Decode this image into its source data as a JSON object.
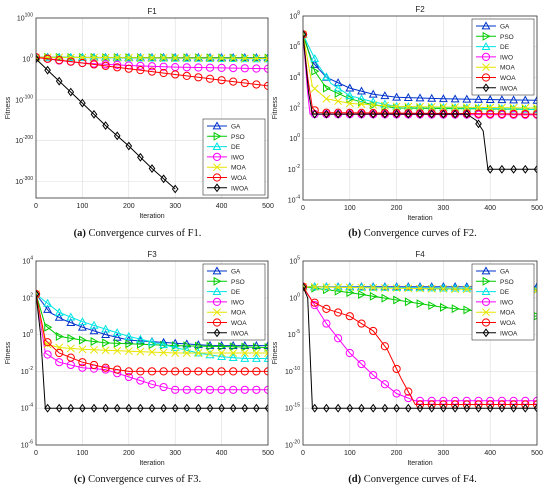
{
  "chart_data": [
    {
      "type": "line",
      "title": "F1",
      "xlabel": "Iteration",
      "ylabel": "Fitness",
      "yscale": "log",
      "xlim": [
        0,
        500
      ],
      "ylim": [
        -340,
        100
      ],
      "xticks": [
        "0",
        "100",
        "200",
        "300",
        "400",
        "500"
      ],
      "yticks": [
        {
          "base": "10",
          "exp": "100",
          "v": 100
        },
        {
          "base": "10",
          "exp": "0",
          "v": 0
        },
        {
          "base": "10",
          "exp": "-100",
          "v": -100
        },
        {
          "base": "10",
          "exp": "-200",
          "v": -200
        },
        {
          "base": "10",
          "exp": "-300",
          "v": -300
        }
      ],
      "legend_position": "bottom-right",
      "caption": {
        "label": "(a)",
        "text": " Convergence curves of F1."
      },
      "series": [
        {
          "name": "GA",
          "color": "#0033cc",
          "marker": "triangle",
          "x": [
            0,
            500
          ],
          "y": [
            4,
            3
          ]
        },
        {
          "name": "PSO",
          "color": "#00cc00",
          "marker": "tri-right",
          "x": [
            0,
            500
          ],
          "y": [
            4,
            2
          ]
        },
        {
          "name": "DE",
          "color": "#00e5e5",
          "marker": "triangle",
          "x": [
            0,
            500
          ],
          "y": [
            4,
            0
          ]
        },
        {
          "name": "IWO",
          "color": "#ff00ff",
          "marker": "circle",
          "x": [
            0,
            50,
            100,
            200,
            300,
            400,
            500
          ],
          "y": [
            4,
            -4,
            -10,
            -16,
            -20,
            -22,
            -24
          ]
        },
        {
          "name": "MOA",
          "color": "#e6e600",
          "marker": "x",
          "x": [
            0,
            500
          ],
          "y": [
            4,
            1
          ]
        },
        {
          "name": "WOA",
          "color": "#ff0000",
          "marker": "circle",
          "x": [
            0,
            50,
            100,
            150,
            200,
            250,
            300,
            350,
            400,
            450,
            500
          ],
          "y": [
            4,
            -3,
            -10,
            -17,
            -24,
            -31,
            -38,
            -45,
            -52,
            -59,
            -66
          ]
        },
        {
          "name": "IWOA",
          "color": "#000000",
          "marker": "diamond",
          "x": [
            0,
            30,
            60,
            100,
            150,
            200,
            250,
            300
          ],
          "y": [
            0,
            -33,
            -65,
            -108,
            -163,
            -213,
            -268,
            -318
          ]
        }
      ]
    },
    {
      "type": "line",
      "title": "F2",
      "xlabel": "Iteration",
      "ylabel": "Fitness",
      "yscale": "log",
      "xlim": [
        0,
        500
      ],
      "ylim": [
        -4,
        8
      ],
      "xticks": [
        "0",
        "100",
        "200",
        "300",
        "400",
        "500"
      ],
      "yticks": [
        {
          "base": "10",
          "exp": "8",
          "v": 8
        },
        {
          "base": "10",
          "exp": "6",
          "v": 6
        },
        {
          "base": "10",
          "exp": "4",
          "v": 4
        },
        {
          "base": "10",
          "exp": "2",
          "v": 2
        },
        {
          "base": "10",
          "exp": "0",
          "v": 0
        },
        {
          "base": "10",
          "exp": "-2",
          "v": -2
        },
        {
          "base": "10",
          "exp": "-4",
          "v": -4
        }
      ],
      "legend_position": "top-right",
      "caption": {
        "label": "(b)",
        "text": " Convergence curves of F2."
      },
      "series": [
        {
          "name": "GA",
          "color": "#0033cc",
          "marker": "triangle",
          "x": [
            0,
            20,
            50,
            100,
            150,
            200,
            300,
            500
          ],
          "y": [
            6.8,
            5.0,
            4.0,
            3.3,
            2.9,
            2.7,
            2.6,
            2.5
          ]
        },
        {
          "name": "PSO",
          "color": "#00cc00",
          "marker": "tri-right",
          "x": [
            0,
            25,
            50,
            100,
            150,
            200,
            500
          ],
          "y": [
            6.8,
            4.4,
            3.3,
            2.6,
            2.2,
            2.0,
            1.9
          ]
        },
        {
          "name": "DE",
          "color": "#00e5e5",
          "marker": "triangle",
          "x": [
            0,
            30,
            60,
            100,
            150,
            200,
            500
          ],
          "y": [
            6.8,
            4.9,
            3.6,
            2.8,
            2.4,
            2.1,
            1.9
          ]
        },
        {
          "name": "IWO",
          "color": "#ff00ff",
          "marker": "circle",
          "x": [
            0,
            10,
            15,
            500
          ],
          "y": [
            6.8,
            3.0,
            1.6,
            1.55
          ]
        },
        {
          "name": "MOA",
          "color": "#e6e600",
          "marker": "x",
          "x": [
            0,
            20,
            50,
            100,
            200,
            500
          ],
          "y": [
            6.8,
            3.4,
            2.6,
            2.3,
            2.1,
            2.0
          ]
        },
        {
          "name": "WOA",
          "color": "#ff0000",
          "marker": "circle",
          "x": [
            0,
            10,
            20,
            30,
            500
          ],
          "y": [
            6.8,
            4.0,
            2.0,
            1.7,
            1.6
          ]
        },
        {
          "name": "IWOA",
          "color": "#000000",
          "marker": "diamond",
          "x": [
            0,
            12,
            20,
            350,
            370,
            385,
            395,
            500
          ],
          "y": [
            6.8,
            3.0,
            1.6,
            1.6,
            1.2,
            0.5,
            -2.0,
            -2.0
          ]
        }
      ]
    },
    {
      "type": "line",
      "title": "F3",
      "xlabel": "Iteration",
      "ylabel": "Fitness",
      "yscale": "log",
      "xlim": [
        0,
        500
      ],
      "ylim": [
        -6,
        4
      ],
      "xticks": [
        "0",
        "100",
        "200",
        "300",
        "400",
        "500"
      ],
      "yticks": [
        {
          "base": "10",
          "exp": "4",
          "v": 4
        },
        {
          "base": "10",
          "exp": "2",
          "v": 2
        },
        {
          "base": "10",
          "exp": "0",
          "v": 0
        },
        {
          "base": "10",
          "exp": "-2",
          "v": -2
        },
        {
          "base": "10",
          "exp": "-4",
          "v": -4
        },
        {
          "base": "10",
          "exp": "-6",
          "v": -6
        }
      ],
      "legend_position": "top-right",
      "caption": {
        "label": "(c)",
        "text": " Convergence curves of F3."
      },
      "series": [
        {
          "name": "GA",
          "color": "#0033cc",
          "marker": "triangle",
          "x": [
            0,
            30,
            60,
            100,
            150,
            200,
            380,
            500
          ],
          "y": [
            2.2,
            1.2,
            0.8,
            0.4,
            0.0,
            -0.3,
            -0.6,
            -0.6
          ]
        },
        {
          "name": "PSO",
          "color": "#00cc00",
          "marker": "tri-right",
          "x": [
            0,
            20,
            50,
            100,
            150,
            200,
            300,
            500
          ],
          "y": [
            2.2,
            0.5,
            -0.1,
            -0.3,
            -0.45,
            -0.5,
            -0.6,
            -0.7
          ]
        },
        {
          "name": "DE",
          "color": "#00e5e5",
          "marker": "triangle",
          "x": [
            0,
            50,
            100,
            150,
            200,
            250,
            300,
            350,
            400,
            450,
            500
          ],
          "y": [
            2.2,
            1.2,
            0.7,
            0.3,
            -0.1,
            -0.4,
            -0.7,
            -1.0,
            -1.2,
            -1.3,
            -1.3
          ]
        },
        {
          "name": "IWO",
          "color": "#ff00ff",
          "marker": "circle",
          "x": [
            0,
            20,
            50,
            100,
            150,
            200,
            250,
            300,
            500
          ],
          "y": [
            2.2,
            -1.0,
            -1.5,
            -1.8,
            -1.9,
            -2.3,
            -2.7,
            -3.0,
            -3.0
          ]
        },
        {
          "name": "MOA",
          "color": "#e6e600",
          "marker": "x",
          "x": [
            0,
            20,
            50,
            100,
            150,
            200,
            300,
            500
          ],
          "y": [
            2.2,
            -0.5,
            -0.7,
            -0.8,
            -0.85,
            -0.9,
            -1.0,
            -1.0
          ]
        },
        {
          "name": "WOA",
          "color": "#ff0000",
          "marker": "circle",
          "x": [
            0,
            20,
            50,
            100,
            150,
            200,
            300,
            500
          ],
          "y": [
            2.2,
            -0.3,
            -1.0,
            -1.5,
            -1.8,
            -2.0,
            -2.0,
            -2.0
          ]
        },
        {
          "name": "IWOA",
          "color": "#000000",
          "marker": "diamond",
          "x": [
            0,
            10,
            20,
            500
          ],
          "y": [
            2.2,
            0.0,
            -4.0,
            -4.0
          ]
        }
      ]
    },
    {
      "type": "line",
      "title": "F4",
      "xlabel": "Iteration",
      "ylabel": "Fitness",
      "yscale": "log",
      "xlim": [
        0,
        500
      ],
      "ylim": [
        -20,
        5
      ],
      "xticks": [
        "0",
        "100",
        "200",
        "300",
        "400",
        "500"
      ],
      "yticks": [
        {
          "base": "10",
          "exp": "5",
          "v": 5
        },
        {
          "base": "10",
          "exp": "0",
          "v": 0
        },
        {
          "base": "10",
          "exp": "-5",
          "v": -5
        },
        {
          "base": "10",
          "exp": "-10",
          "v": -10
        },
        {
          "base": "10",
          "exp": "-15",
          "v": -15
        },
        {
          "base": "10",
          "exp": "-20",
          "v": -20
        }
      ],
      "legend_position": "top-right",
      "caption": {
        "label": "(d)",
        "text": " Convergence curves of F4."
      },
      "series": [
        {
          "name": "GA",
          "color": "#0033cc",
          "marker": "triangle",
          "x": [
            0,
            500
          ],
          "y": [
            1.5,
            1.5
          ]
        },
        {
          "name": "PSO",
          "color": "#00cc00",
          "marker": "tri-right",
          "x": [
            0,
            100,
            200,
            300,
            400,
            500
          ],
          "y": [
            1.5,
            0.7,
            -0.3,
            -1.3,
            -2.0,
            -2.5
          ]
        },
        {
          "name": "DE",
          "color": "#00e5e5",
          "marker": "triangle",
          "x": [
            0,
            500
          ],
          "y": [
            1.5,
            1.2
          ]
        },
        {
          "name": "IWO",
          "color": "#ff00ff",
          "marker": "circle",
          "x": [
            0,
            20,
            50,
            100,
            150,
            200,
            240,
            500
          ],
          "y": [
            1.5,
            -0.5,
            -3.5,
            -7.5,
            -10.5,
            -13.0,
            -14.0,
            -14.0
          ]
        },
        {
          "name": "MOA",
          "color": "#e6e600",
          "marker": "x",
          "x": [
            0,
            500
          ],
          "y": [
            1.5,
            1.0
          ]
        },
        {
          "name": "WOA",
          "color": "#ff0000",
          "marker": "circle",
          "x": [
            0,
            20,
            50,
            100,
            150,
            180,
            210,
            240,
            500
          ],
          "y": [
            1.5,
            -0.5,
            -1.5,
            -2.5,
            -4.5,
            -7.0,
            -11.0,
            -14.5,
            -14.5
          ]
        },
        {
          "name": "IWOA",
          "color": "#000000",
          "marker": "diamond",
          "x": [
            0,
            10,
            20,
            500
          ],
          "y": [
            1.5,
            0.0,
            -15.0,
            -15.0
          ]
        }
      ]
    }
  ]
}
